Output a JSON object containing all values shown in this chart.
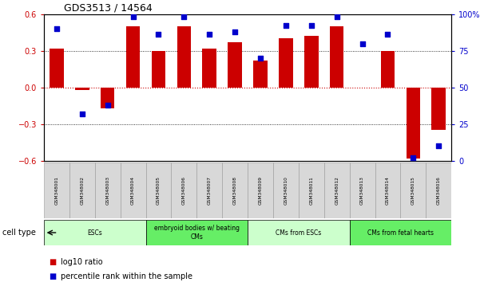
{
  "title": "GDS3513 / 14564",
  "samples": [
    "GSM348001",
    "GSM348002",
    "GSM348003",
    "GSM348004",
    "GSM348005",
    "GSM348006",
    "GSM348007",
    "GSM348008",
    "GSM348009",
    "GSM348010",
    "GSM348011",
    "GSM348012",
    "GSM348013",
    "GSM348014",
    "GSM348015",
    "GSM348016"
  ],
  "log10_ratio": [
    0.32,
    -0.02,
    -0.17,
    0.5,
    0.3,
    0.5,
    0.32,
    0.37,
    0.22,
    0.4,
    0.42,
    0.5,
    0.0,
    0.3,
    -0.58,
    -0.35
  ],
  "percentile_rank": [
    90,
    32,
    38,
    98,
    86,
    98,
    86,
    88,
    70,
    92,
    92,
    98,
    80,
    86,
    2,
    10
  ],
  "ylim": [
    -0.6,
    0.6
  ],
  "y2lim": [
    0,
    100
  ],
  "yticks": [
    -0.6,
    -0.3,
    0.0,
    0.3,
    0.6
  ],
  "y2ticks": [
    0,
    25,
    50,
    75,
    100
  ],
  "bar_color": "#cc0000",
  "dot_color": "#0000cc",
  "cell_type_groups": [
    {
      "label": "ESCs",
      "start": 0,
      "end": 3,
      "color": "#ccffcc"
    },
    {
      "label": "embryoid bodies w/ beating\nCMs",
      "start": 4,
      "end": 7,
      "color": "#66ee66"
    },
    {
      "label": "CMs from ESCs",
      "start": 8,
      "end": 11,
      "color": "#ccffcc"
    },
    {
      "label": "CMs from fetal hearts",
      "start": 12,
      "end": 15,
      "color": "#66ee66"
    }
  ],
  "legend_bar_label": "log10 ratio",
  "legend_dot_label": "percentile rank within the sample",
  "cell_type_label": "cell type",
  "hline_color": "#cc0000",
  "dotted_hlines": [
    -0.3,
    0.3
  ],
  "tick_color_left": "#cc0000",
  "tick_color_right": "#0000cc",
  "bar_width": 0.55,
  "dot_size": 18
}
